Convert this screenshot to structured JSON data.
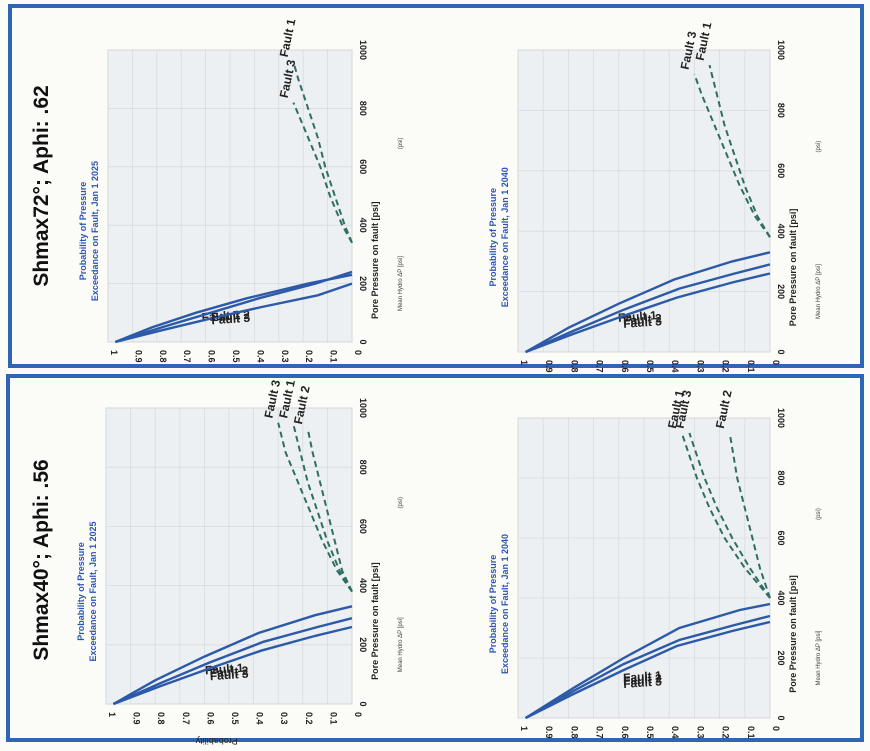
{
  "panels": [
    {
      "title": "Shmax72°; Aphi: .62",
      "frame_color": "#2f66b3",
      "charts": [
        {
          "title_line1": "Probability of Pressure",
          "title_line2": "Exceedance on Fault, Jan 1 2025",
          "xlabel": "Pore Pressure on fault [psi]",
          "footnote": "Mean Hydro ΔP [psi]",
          "footnote2": "(psi)"
        },
        {
          "title_line1": "Probability of Pressure",
          "title_line2": "Exceedance on Fault, Jan 1 2040",
          "xlabel": "Pore Pressure on fault [psi]",
          "footnote": "Mean Hydro ΔP [psi]",
          "footnote2": "(psi)"
        }
      ]
    },
    {
      "title": "Shmax40°; Aphi: .56",
      "frame_color": "#2f66b3",
      "charts": [
        {
          "title_line1": "Probability of Pressure",
          "title_line2": "Exceedance on Fault, Jan 1 2025",
          "xlabel": "Pore Pressure on fault [psi]",
          "ylabel": "Probability",
          "footnote": "Mean Hydro ΔP [psi]",
          "footnote2": "(psi)"
        },
        {
          "title_line1": "Probability of Pressure",
          "title_line2": "Exceedance on Fault, Jan 1 2040",
          "xlabel": "Pore Pressure on fault [psi]",
          "footnote": "Mean Hydro ΔP [psi]",
          "footnote2": "(psi)"
        }
      ]
    }
  ],
  "colors": {
    "solid": "#2c5aa8",
    "dashed": "#2e6e63",
    "title": "#2a55b0"
  },
  "chart_data": [
    {
      "type": "line",
      "title": "Probability of Pressure Exceedance on Fault, Jan 1 2025",
      "xlabel": "Pore Pressure on fault [psi]",
      "xlim": [
        0,
        1000
      ],
      "ylim": [
        0,
        1
      ],
      "x_ticks": [
        0,
        200,
        400,
        600,
        800,
        1000
      ],
      "y_ticks": [
        0,
        0.1,
        0.2,
        0.3,
        0.4,
        0.5,
        0.6,
        0.7,
        0.8,
        0.9,
        1
      ],
      "series": [
        {
          "name": "Fault 1",
          "style": "solid",
          "x": [
            0,
            50,
            100,
            150,
            200,
            230
          ],
          "y": [
            0.97,
            0.82,
            0.64,
            0.43,
            0.18,
            0.0
          ]
        },
        {
          "name": "Fault 2",
          "style": "solid",
          "x": [
            0,
            50,
            100,
            150,
            200,
            240
          ],
          "y": [
            0.97,
            0.78,
            0.58,
            0.38,
            0.15,
            0.0
          ]
        },
        {
          "name": "Fault 3",
          "style": "solid",
          "x": [
            0,
            40,
            80,
            120,
            160,
            200
          ],
          "y": [
            0.97,
            0.78,
            0.58,
            0.37,
            0.14,
            0.0
          ]
        },
        {
          "name": "Fault 1",
          "style": "dashed",
          "x": [
            340,
            400,
            500,
            600,
            700,
            800,
            900,
            960
          ],
          "y": [
            0.0,
            0.03,
            0.07,
            0.11,
            0.14,
            0.18,
            0.22,
            0.24
          ]
        },
        {
          "name": "Fault 3",
          "style": "dashed",
          "x": [
            340,
            400,
            500,
            600,
            700,
            760,
            820
          ],
          "y": [
            0.0,
            0.04,
            0.09,
            0.13,
            0.18,
            0.21,
            0.24
          ]
        }
      ]
    },
    {
      "type": "line",
      "title": "Probability of Pressure Exceedance on Fault, Jan 1 2040",
      "xlabel": "Pore Pressure on fault [psi]",
      "xlim": [
        0,
        1000
      ],
      "ylim": [
        0,
        1
      ],
      "x_ticks": [
        0,
        200,
        400,
        600,
        800,
        1000
      ],
      "y_ticks": [
        0,
        0.1,
        0.2,
        0.3,
        0.4,
        0.5,
        0.6,
        0.7,
        0.8,
        0.9,
        1
      ],
      "series": [
        {
          "name": "Fault 1",
          "style": "solid",
          "x": [
            0,
            80,
            160,
            240,
            300,
            330
          ],
          "y": [
            0.97,
            0.8,
            0.6,
            0.38,
            0.15,
            0.0
          ]
        },
        {
          "name": "Fault 2",
          "style": "solid",
          "x": [
            0,
            70,
            140,
            210,
            260,
            290
          ],
          "y": [
            0.97,
            0.78,
            0.58,
            0.36,
            0.14,
            0.0
          ]
        },
        {
          "name": "Fault 3",
          "style": "solid",
          "x": [
            0,
            60,
            120,
            180,
            230,
            260
          ],
          "y": [
            0.97,
            0.78,
            0.58,
            0.37,
            0.15,
            0.0
          ]
        },
        {
          "name": "Fault 1",
          "style": "dashed",
          "x": [
            380,
            450,
            550,
            650,
            750,
            850,
            950
          ],
          "y": [
            0.0,
            0.05,
            0.1,
            0.14,
            0.18,
            0.21,
            0.24
          ]
        },
        {
          "name": "Fault 3",
          "style": "dashed",
          "x": [
            380,
            450,
            550,
            650,
            750,
            850,
            920
          ],
          "y": [
            0.0,
            0.06,
            0.12,
            0.17,
            0.22,
            0.27,
            0.3
          ]
        }
      ]
    },
    {
      "type": "line",
      "title": "Probability of Pressure Exceedance on Fault, Jan 1 2025",
      "xlabel": "Pore Pressure on fault [psi]",
      "ylabel": "Probability",
      "xlim": [
        0,
        1000
      ],
      "ylim": [
        0,
        1
      ],
      "x_ticks": [
        0,
        200,
        400,
        600,
        800,
        1000
      ],
      "y_ticks": [
        0,
        0.1,
        0.2,
        0.3,
        0.4,
        0.5,
        0.6,
        0.7,
        0.8,
        0.9,
        1
      ],
      "series": [
        {
          "name": "Fault 1",
          "style": "solid",
          "x": [
            0,
            80,
            160,
            240,
            300,
            330
          ],
          "y": [
            0.97,
            0.8,
            0.6,
            0.38,
            0.15,
            0.0
          ]
        },
        {
          "name": "Fault 2",
          "style": "solid",
          "x": [
            0,
            70,
            140,
            210,
            260,
            290
          ],
          "y": [
            0.97,
            0.78,
            0.58,
            0.36,
            0.14,
            0.0
          ]
        },
        {
          "name": "Fault 3",
          "style": "solid",
          "x": [
            0,
            60,
            120,
            180,
            230,
            260
          ],
          "y": [
            0.97,
            0.78,
            0.58,
            0.37,
            0.15,
            0.0
          ]
        },
        {
          "name": "Fault 1",
          "style": "dashed",
          "x": [
            380,
            450,
            550,
            650,
            750,
            850,
            950
          ],
          "y": [
            0.0,
            0.05,
            0.1,
            0.14,
            0.18,
            0.21,
            0.24
          ]
        },
        {
          "name": "Fault 2",
          "style": "dashed",
          "x": [
            380,
            450,
            550,
            650,
            750,
            850,
            930
          ],
          "y": [
            0.0,
            0.04,
            0.07,
            0.1,
            0.13,
            0.16,
            0.18
          ]
        },
        {
          "name": "Fault 3",
          "style": "dashed",
          "x": [
            380,
            450,
            550,
            650,
            750,
            850,
            950
          ],
          "y": [
            0.0,
            0.06,
            0.12,
            0.17,
            0.22,
            0.27,
            0.3
          ]
        }
      ]
    },
    {
      "type": "line",
      "title": "Probability of Pressure Exceedance on Fault, Jan 1 2040",
      "xlabel": "Pore Pressure on fault [psi]",
      "xlim": [
        0,
        1000
      ],
      "ylim": [
        0,
        1
      ],
      "x_ticks": [
        0,
        200,
        400,
        600,
        800,
        1000
      ],
      "y_ticks": [
        0,
        0.1,
        0.2,
        0.3,
        0.4,
        0.5,
        0.6,
        0.7,
        0.8,
        0.9,
        1
      ],
      "series": [
        {
          "name": "Fault 1",
          "style": "solid",
          "x": [
            0,
            100,
            200,
            300,
            360,
            380
          ],
          "y": [
            0.97,
            0.78,
            0.58,
            0.36,
            0.12,
            0.0
          ]
        },
        {
          "name": "Fault 2",
          "style": "solid",
          "x": [
            0,
            90,
            180,
            260,
            310,
            340
          ],
          "y": [
            0.97,
            0.78,
            0.58,
            0.36,
            0.14,
            0.0
          ]
        },
        {
          "name": "Fault 3",
          "style": "solid",
          "x": [
            0,
            80,
            160,
            240,
            290,
            320
          ],
          "y": [
            0.97,
            0.78,
            0.58,
            0.37,
            0.15,
            0.0
          ]
        },
        {
          "name": "Fault 1",
          "style": "dashed",
          "x": [
            400,
            500,
            600,
            700,
            800,
            900,
            950
          ],
          "y": [
            0.0,
            0.1,
            0.18,
            0.24,
            0.29,
            0.33,
            0.35
          ]
        },
        {
          "name": "Fault 2",
          "style": "dashed",
          "x": [
            400,
            500,
            600,
            700,
            800,
            900,
            950
          ],
          "y": [
            0.0,
            0.04,
            0.07,
            0.1,
            0.13,
            0.15,
            0.16
          ]
        },
        {
          "name": "Fault 3",
          "style": "dashed",
          "x": [
            400,
            500,
            600,
            700,
            800,
            900,
            950
          ],
          "y": [
            0.0,
            0.08,
            0.15,
            0.21,
            0.26,
            0.3,
            0.32
          ]
        }
      ]
    }
  ]
}
